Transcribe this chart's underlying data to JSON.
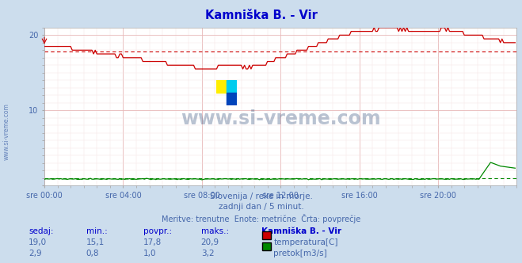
{
  "title": "Kamniška B. - Vir",
  "bg_color": "#ccdded",
  "plot_bg_color": "#ffffff",
  "x_labels": [
    "sre 00:00",
    "sre 04:00",
    "sre 08:00",
    "sre 12:00",
    "sre 16:00",
    "sre 20:00"
  ],
  "x_ticks": [
    0,
    48,
    96,
    144,
    192,
    240
  ],
  "x_max": 288,
  "y_min": 0,
  "y_max": 21,
  "temp_color": "#cc0000",
  "flow_color": "#008800",
  "avg_temp": 17.8,
  "avg_flow": 1.0,
  "temp_max_val": 20.9,
  "flow_max_val": 3.2,
  "watermark": "www.si-vreme.com",
  "watermark_color": "#1a3a6a",
  "subtitle1": "Slovenija / reke in morje.",
  "subtitle2": "zadnji dan / 5 minut.",
  "subtitle3": "Meritve: trenutne  Enote: metrične  Črta: povprečje",
  "table_headers": [
    "sedaj:",
    "min.:",
    "povpr.:",
    "maks.:",
    "Kamniška B. - Vir"
  ],
  "temp_row": [
    "19,0",
    "15,1",
    "17,8",
    "20,9",
    "temperatura[C]"
  ],
  "flow_row": [
    "2,9",
    "0,8",
    "1,0",
    "3,2",
    "pretok[m3/s]"
  ],
  "left_label": "www.si-vreme.com",
  "title_color": "#0000cc",
  "text_color": "#4466aa",
  "table_header_color": "#0000cc",
  "grid_major_color": "#e8b8b8",
  "grid_minor_color": "#f4e0e0",
  "logo_yellow": "#ffee00",
  "logo_cyan": "#00ccee",
  "logo_blue": "#0044bb"
}
